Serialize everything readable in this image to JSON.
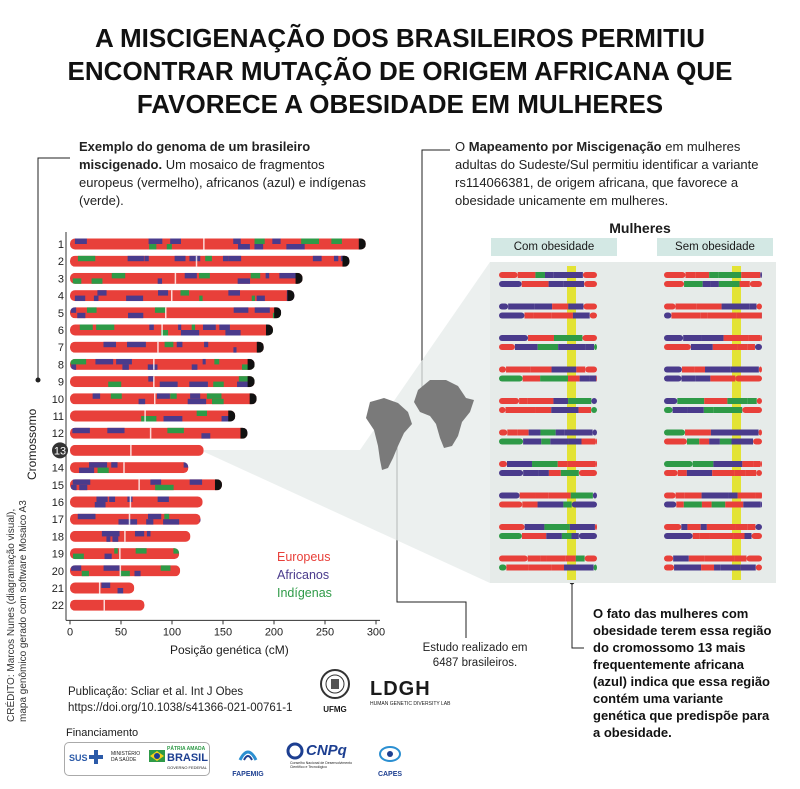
{
  "title": {
    "line1": "A MISCIGENAÇÃO DOS BRASILEIROS PERMITIU",
    "line2": "ENCONTRAR MUTAÇÃO DE ORIGEM AFRICANA QUE",
    "line3": "FAVORECE A OBESIDADE EM MULHERES"
  },
  "left_note": {
    "bold": "Exemplo do genoma de um  brasileiro miscigenado.",
    "rest": " Um mosaico de fragmentos europeus (vermelho), africanos (azul) e indígenas (verde)."
  },
  "right_note": {
    "pre": "O ",
    "bold": "Mapeamento por Miscigenação",
    "rest": " em mulheres adultas do Sudeste/Sul permitiu identificar a variante rs114066381, de origem africana, que favorece a obesidade unicamente em mulheres."
  },
  "colors": {
    "european": "#e8403a",
    "african": "#4a3b8c",
    "indigenous": "#2e9a47",
    "highlight": "#e3e335",
    "panel_bg": "#e6ebe9",
    "header_bg": "#d3e8e4"
  },
  "chart_data": {
    "type": "chromosome-mosaic",
    "ylabel": "Cromossomo",
    "xlabel": "Posição genética (cM)",
    "xlim": [
      0,
      300
    ],
    "xticks": [
      "0",
      "50",
      "100",
      "150",
      "200",
      "250",
      "300"
    ],
    "chromosomes": [
      {
        "label": "1",
        "length": 290
      },
      {
        "label": "2",
        "length": 274
      },
      {
        "label": "3",
        "length": 228
      },
      {
        "label": "4",
        "length": 220
      },
      {
        "label": "5",
        "length": 207
      },
      {
        "label": "6",
        "length": 199
      },
      {
        "label": "7",
        "length": 190
      },
      {
        "label": "8",
        "length": 181
      },
      {
        "label": "9",
        "length": 181
      },
      {
        "label": "10",
        "length": 183
      },
      {
        "label": "11",
        "length": 162
      },
      {
        "label": "12",
        "length": 174
      },
      {
        "label": "13",
        "length": 131
      },
      {
        "label": "14",
        "length": 116
      },
      {
        "label": "15",
        "length": 149
      },
      {
        "label": "16",
        "length": 130
      },
      {
        "label": "17",
        "length": 128
      },
      {
        "label": "18",
        "length": 118
      },
      {
        "label": "19",
        "length": 107
      },
      {
        "label": "20",
        "length": 108
      },
      {
        "label": "21",
        "length": 63
      },
      {
        "label": "22",
        "length": 73
      }
    ],
    "highlighted_chromosome": "13",
    "legend": [
      "Europeus",
      "Africanos",
      "Indígenas"
    ]
  },
  "women": {
    "title": "Mulheres",
    "with_obesity": "Com obesidade",
    "without_obesity": "Sem obesidade"
  },
  "study_note": "Estudo realizado em 6487 brasileiros.",
  "finding": "O fato das mulheres com obesidade terem essa região do cromossomo 13 mais frequentemente africana (azul) indica que essa região contém uma variante genética que predispõe para a obesidade.",
  "publication": {
    "line1": "Publicação: Scliar et al. Int J Obes",
    "line2": "https://doi.org/10.1038/s41366-021-00761-1"
  },
  "credit": {
    "line1": "CRÉDITO: Marcos Nunes (diagramação visual),",
    "line2": "mapa genômico gerado com software Mosaico A3"
  },
  "logos": {
    "ufmg": "UFMG",
    "ldgh": "LDGH",
    "ldgh_sub": "HUMAN GENETIC DIVERSITY LAB",
    "financiamento": "Financiamento",
    "sus": "SUS",
    "ministerio": "MINISTÉRIO DA SAÚDE",
    "patria": "PÁTRIA AMADA",
    "brasil": "BRASIL",
    "governo": "GOVERNO FEDERAL",
    "fapemig": "FAPEMIG",
    "cnpq": "CNPq",
    "cnpq_sub": "Conselho Nacional de Desenvolvimento Científico e Tecnológico",
    "capes": "CAPES"
  }
}
